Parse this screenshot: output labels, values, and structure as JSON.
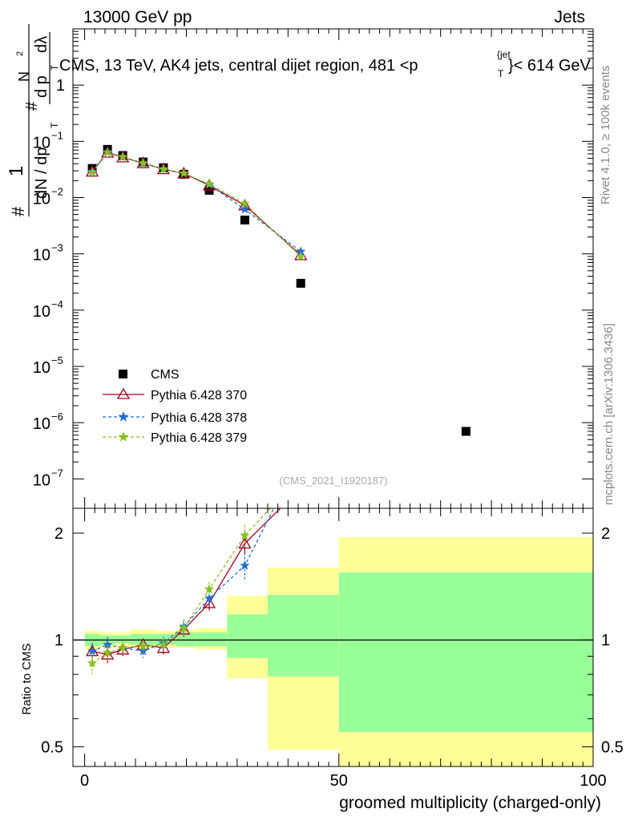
{
  "header": {
    "energy_label": "13000 GeV pp",
    "category_label": "Jets"
  },
  "side": {
    "rivet_label": "Rivet 4.1.0, ≥ 100k events",
    "mcplots_label": "mcplots.cern.ch [arXiv:1306.3436]"
  },
  "colors": {
    "data": "#000000",
    "pythia_370": "#a0001f",
    "pythia_378": "#1f6fd6",
    "pythia_379": "#88c21f",
    "band_inner": "#99ff99",
    "band_outer": "#ffff99"
  },
  "chart_data": [
    {
      "type": "scatter",
      "panel": "main",
      "title": "CMS, 13 TeV, AK4 jets, central dijet region, 481 <p_T^{jet}< 614 GeV",
      "title_parts": {
        "main": "CMS, 13 TeV, AK4 jets, central dijet region, 481 <p",
        "sub": "T",
        "sup": "{jet",
        "tail": "}< 614 GeV"
      },
      "ylabel": "1/dN/dp_T d^2N/dp_T dlambda",
      "ylabel_parts": {
        "n1": "1",
        "n2": "d",
        "sup2": "2",
        "n3": "N",
        "d1": "dN / dp",
        "d2": "d p",
        "dlam": "dλ",
        "sub_t": "T",
        "hash": "#"
      },
      "yscale": "log",
      "ylim": [
        3e-08,
        10
      ],
      "xlim": [
        -2.3,
        100
      ],
      "ytick_labels": [
        {
          "mant": "",
          "exp": "",
          "text": "1",
          "value": 1
        },
        {
          "mant": "10",
          "exp": "−1",
          "value": 0.1
        },
        {
          "mant": "10",
          "exp": "−2",
          "value": 0.01
        },
        {
          "mant": "10",
          "exp": "−3",
          "value": 0.001
        },
        {
          "mant": "10",
          "exp": "−4",
          "value": 0.0001
        },
        {
          "mant": "10",
          "exp": "−5",
          "value": 1e-05
        },
        {
          "mant": "10",
          "exp": "−6",
          "value": 1e-06
        },
        {
          "mant": "10",
          "exp": "−7",
          "value": 1e-07
        }
      ],
      "watermark": "(CMS_2021_I1920187)",
      "legend_position": "lower-left",
      "series": [
        {
          "name": "CMS",
          "kind": "data",
          "x": [
            1.5,
            4.5,
            7.5,
            11.5,
            15.5,
            19.5,
            24.5,
            31.5,
            42.5,
            75
          ],
          "y": [
            0.033,
            0.072,
            0.056,
            0.043,
            0.034,
            0.026,
            0.0135,
            0.004,
            0.0003,
            7e-07
          ]
        },
        {
          "name": "Pythia 6.428 370",
          "kind": "line-triangle",
          "x": [
            1.5,
            4.5,
            7.5,
            11.5,
            15.5,
            19.5,
            24.5,
            31.5,
            42.5
          ],
          "y": [
            0.029,
            0.063,
            0.052,
            0.041,
            0.032,
            0.027,
            0.0165,
            0.0073,
            0.00095
          ]
        },
        {
          "name": "Pythia 6.428 378",
          "kind": "dashed-star",
          "x": [
            1.5,
            4.5,
            7.5,
            11.5,
            15.5,
            19.5,
            24.5,
            31.5,
            42.5
          ],
          "y": [
            0.029,
            0.065,
            0.053,
            0.04,
            0.032,
            0.027,
            0.017,
            0.0062,
            0.0011
          ]
        },
        {
          "name": "Pythia 6.428 379",
          "kind": "dashed-star",
          "x": [
            1.5,
            4.5,
            7.5,
            11.5,
            15.5,
            19.5,
            24.5,
            31.5,
            42.5
          ],
          "y": [
            0.028,
            0.063,
            0.053,
            0.041,
            0.032,
            0.027,
            0.0175,
            0.0078,
            0.0009
          ]
        }
      ]
    },
    {
      "type": "line",
      "panel": "ratio",
      "ylabel": "Ratio to CMS",
      "xlabel": "groomed multiplicity (charged-only)",
      "yscale": "log",
      "ylim": [
        0.44,
        2.35
      ],
      "xlim": [
        -2.3,
        100
      ],
      "xticks": [
        0,
        50,
        100
      ],
      "xtick_labels": [
        "0",
        "50",
        "100"
      ],
      "yticks": [
        0.5,
        1,
        2
      ],
      "ytick_labels": [
        "0.5",
        "1",
        "2"
      ],
      "bins": [
        {
          "x0": 0,
          "x1": 3,
          "stat": [
            0.96,
            1.04
          ],
          "tot": [
            0.94,
            1.06
          ]
        },
        {
          "x0": 3,
          "x1": 6,
          "stat": [
            0.97,
            1.03
          ],
          "tot": [
            0.95,
            1.05
          ]
        },
        {
          "x0": 6,
          "x1": 9,
          "stat": [
            0.98,
            1.03
          ],
          "tot": [
            0.96,
            1.05
          ]
        },
        {
          "x0": 9,
          "x1": 14,
          "stat": [
            0.97,
            1.04
          ],
          "tot": [
            0.95,
            1.07
          ]
        },
        {
          "x0": 14,
          "x1": 18,
          "stat": [
            0.97,
            1.04
          ],
          "tot": [
            0.95,
            1.06
          ]
        },
        {
          "x0": 18,
          "x1": 22,
          "stat": [
            0.96,
            1.05
          ],
          "tot": [
            0.95,
            1.07
          ]
        },
        {
          "x0": 22,
          "x1": 28,
          "stat": [
            0.96,
            1.05
          ],
          "tot": [
            0.94,
            1.08
          ]
        },
        {
          "x0": 28,
          "x1": 36,
          "stat": [
            0.89,
            1.18
          ],
          "tot": [
            0.78,
            1.33
          ]
        },
        {
          "x0": 36,
          "x1": 50,
          "stat": [
            0.79,
            1.34
          ],
          "tot": [
            0.49,
            1.6
          ]
        },
        {
          "x0": 50,
          "x1": 100,
          "stat": [
            0.55,
            1.55
          ],
          "tot": [
            0.3,
            1.95
          ]
        }
      ],
      "series": [
        {
          "name": "Pythia 6.428 370",
          "x": [
            1.5,
            4.5,
            7.5,
            11.5,
            15.5,
            19.5,
            24.5,
            31.5,
            38.5
          ],
          "y": [
            0.93,
            0.91,
            0.94,
            0.97,
            0.95,
            1.07,
            1.27,
            1.87,
            2.35
          ],
          "err": [
            0.05,
            0.05,
            0.04,
            0.04,
            0.04,
            0.05,
            0.06,
            0.12,
            0
          ]
        },
        {
          "name": "Pythia 6.428 378",
          "x": [
            1.5,
            4.5,
            7.5,
            11.5,
            15.5,
            19.5,
            24.5,
            31.5,
            37.2
          ],
          "y": [
            0.93,
            0.97,
            0.95,
            0.93,
            0.98,
            1.09,
            1.31,
            1.62,
            2.35
          ],
          "err": [
            0.05,
            0.05,
            0.04,
            0.04,
            0.04,
            0.05,
            0.07,
            0.14,
            0
          ]
        },
        {
          "name": "Pythia 6.428 379",
          "x": [
            1.5,
            4.5,
            7.5,
            11.5,
            15.5,
            19.5,
            24.5,
            31.5,
            36.5
          ],
          "y": [
            0.86,
            0.92,
            0.95,
            0.96,
            0.97,
            1.08,
            1.39,
            1.97,
            2.35
          ],
          "err": [
            0.06,
            0.05,
            0.04,
            0.04,
            0.04,
            0.05,
            0.07,
            0.14,
            0
          ]
        }
      ]
    }
  ]
}
